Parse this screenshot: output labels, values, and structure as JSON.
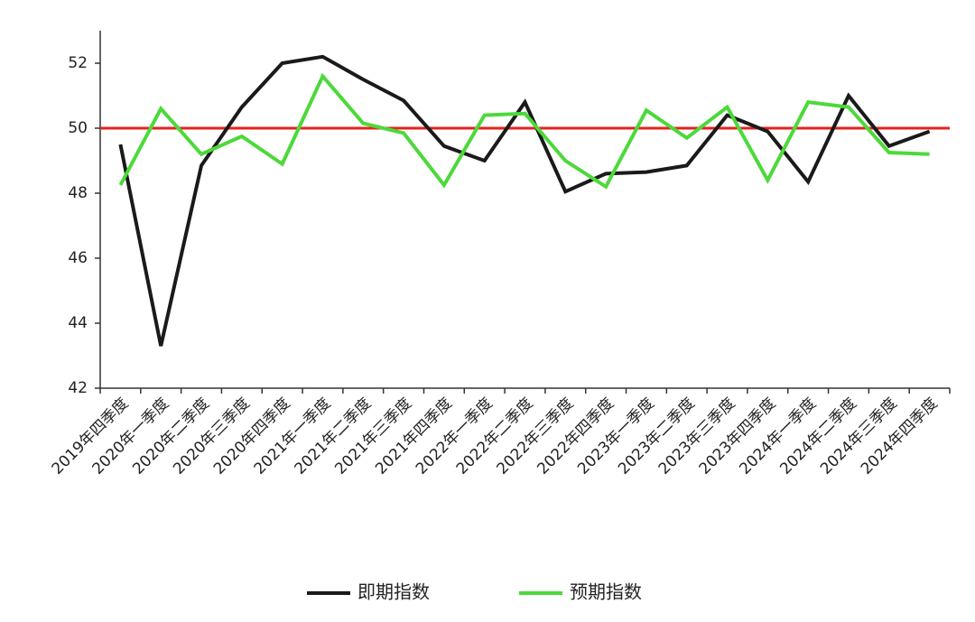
{
  "chart_data": {
    "type": "line",
    "categories": [
      "2019年四季度",
      "2020年一季度",
      "2020年二季度",
      "2020年三季度",
      "2020年四季度",
      "2021年一季度",
      "2021年二季度",
      "2021年三季度",
      "2021年四季度",
      "2022年一季度",
      "2022年二季度",
      "2022年三季度",
      "2022年四季度",
      "2023年一季度",
      "2023年二季度",
      "2023年三季度",
      "2023年四季度",
      "2024年一季度",
      "2024年二季度",
      "2024年三季度",
      "2024年四季度"
    ],
    "series": [
      {
        "name": "即期指数",
        "color": "#1a1a1a",
        "values": [
          49.5,
          43.3,
          48.85,
          50.65,
          52.0,
          52.2,
          51.5,
          50.85,
          49.45,
          49.0,
          50.8,
          48.05,
          48.6,
          48.65,
          48.85,
          50.4,
          49.9,
          48.35,
          51.0,
          49.45,
          49.9
        ]
      },
      {
        "name": "预期指数",
        "color": "#4cd93a",
        "values": [
          48.25,
          50.6,
          49.2,
          49.75,
          48.9,
          51.6,
          50.15,
          49.85,
          48.25,
          50.4,
          50.45,
          49.0,
          48.2,
          50.55,
          49.7,
          50.65,
          48.4,
          50.8,
          50.65,
          49.25,
          49.2
        ]
      }
    ],
    "reference_line": {
      "value": 50,
      "color": "#e8211c"
    },
    "ylim": [
      42,
      53
    ],
    "yticks": [
      42,
      44,
      46,
      48,
      50,
      52
    ],
    "legend": "bottom"
  }
}
